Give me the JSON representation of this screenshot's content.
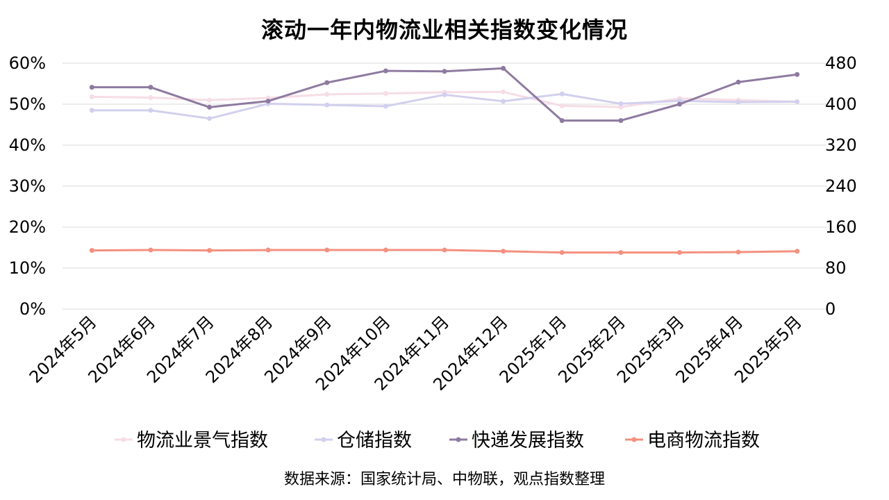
{
  "chart_data": {
    "type": "line",
    "title": "滚动一年内物流业相关指数变化情况",
    "source": "数据来源：国家统计局、中物联，观点指数整理",
    "categories": [
      "2024年5月",
      "2024年6月",
      "2024年7月",
      "2024年8月",
      "2024年9月",
      "2024年10月",
      "2024年11月",
      "2024年12月",
      "2025年1月",
      "2025年2月",
      "2025年3月",
      "2025年4月",
      "2025年5月"
    ],
    "y_left": {
      "min": 0,
      "max": 60,
      "ticks": [
        "0%",
        "10%",
        "20%",
        "30%",
        "40%",
        "50%",
        "60%"
      ]
    },
    "y_right": {
      "min": 0,
      "max": 480,
      "ticks": [
        "0",
        "80",
        "160",
        "240",
        "320",
        "400",
        "480"
      ]
    },
    "grid": true,
    "legend_position": "bottom",
    "series": [
      {
        "name": "物流业景气指数",
        "axis": "left",
        "color": "#f6dde6",
        "values": [
          51.8,
          51.6,
          51.0,
          51.5,
          52.4,
          52.6,
          52.9,
          53.0,
          49.6,
          49.3,
          51.4,
          51.0,
          50.6
        ]
      },
      {
        "name": "仓储指数",
        "axis": "left",
        "color": "#d2d0ee",
        "values": [
          48.5,
          48.5,
          46.5,
          50.1,
          49.8,
          49.5,
          52.3,
          50.7,
          52.5,
          50.1,
          50.8,
          50.5,
          50.6
        ]
      },
      {
        "name": "快递发展指数",
        "axis": "right",
        "color": "#8e7aa0",
        "values": [
          433,
          433,
          394,
          406,
          442,
          465,
          464,
          470,
          368,
          368,
          400,
          443,
          458
        ]
      },
      {
        "name": "电商物流指数",
        "axis": "left",
        "color": "#f4907e",
        "values": [
          14.3,
          14.4,
          14.3,
          14.4,
          14.4,
          14.4,
          14.4,
          14.1,
          13.8,
          13.8,
          13.8,
          13.9,
          14.1
        ]
      }
    ]
  }
}
